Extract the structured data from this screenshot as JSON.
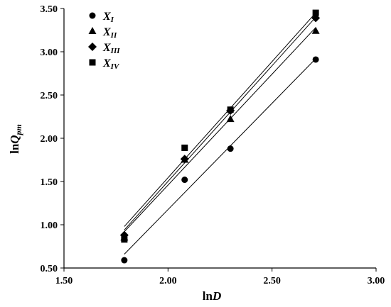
{
  "chart_data": {
    "type": "scatter",
    "xlabel_main": "ln",
    "xlabel_var": "D",
    "ylabel_main": "ln",
    "ylabel_var": "Q",
    "ylabel_sub": "pm",
    "xlim": [
      1.5,
      3.0
    ],
    "ylim": [
      0.5,
      3.5
    ],
    "x_ticks": [
      "1.50",
      "2.00",
      "2.50",
      "3.00"
    ],
    "y_ticks": [
      "0.50",
      "1.00",
      "1.50",
      "2.00",
      "2.50",
      "3.00",
      "3.50"
    ],
    "legend_position": "top-left",
    "grid": false,
    "series": [
      {
        "name_main": "X",
        "name_sub": "I",
        "marker": "circle",
        "x": [
          1.79,
          2.08,
          2.3,
          2.71
        ],
        "y": [
          0.59,
          1.52,
          1.88,
          2.91
        ],
        "trend": [
          [
            1.79,
            0.66
          ],
          [
            2.71,
            2.92
          ]
        ]
      },
      {
        "name_main": "X",
        "name_sub": "II",
        "marker": "triangle",
        "x": [
          1.79,
          2.08,
          2.3,
          2.71
        ],
        "y": [
          0.85,
          1.75,
          2.22,
          3.24
        ],
        "trend": [
          [
            1.79,
            0.92
          ],
          [
            2.71,
            3.28
          ]
        ]
      },
      {
        "name_main": "X",
        "name_sub": "III",
        "marker": "diamond",
        "x": [
          1.79,
          2.08,
          2.3,
          2.71
        ],
        "y": [
          0.88,
          1.76,
          2.32,
          3.39
        ],
        "trend": [
          [
            1.79,
            0.94
          ],
          [
            2.71,
            3.4
          ]
        ]
      },
      {
        "name_main": "X",
        "name_sub": "IV",
        "marker": "square",
        "x": [
          1.79,
          2.08,
          2.3,
          2.71
        ],
        "y": [
          0.83,
          1.89,
          2.33,
          3.45
        ],
        "trend": [
          [
            1.79,
            0.98
          ],
          [
            2.71,
            3.45
          ]
        ]
      }
    ]
  }
}
